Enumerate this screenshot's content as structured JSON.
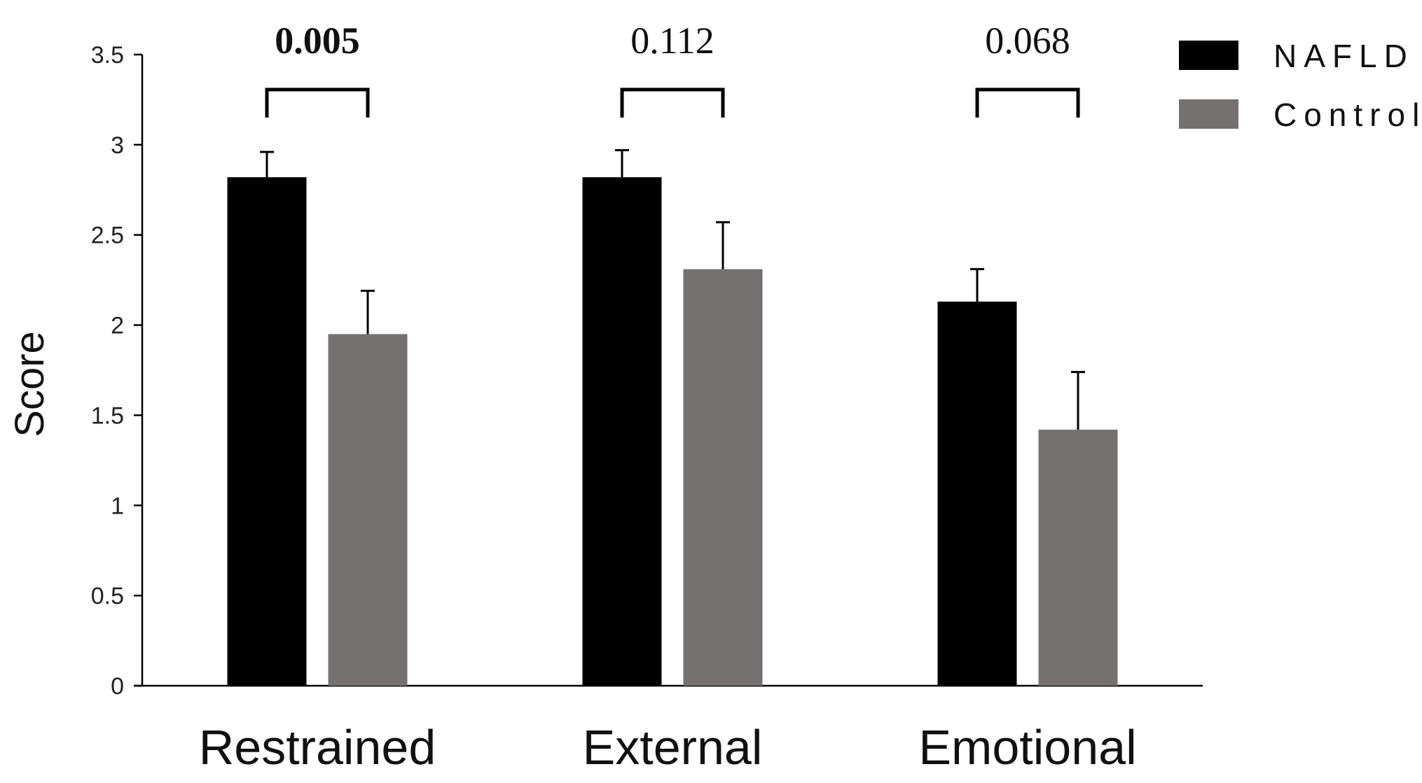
{
  "chart_data": {
    "type": "bar",
    "categories": [
      "Restrained",
      "External",
      "Emotional"
    ],
    "series": [
      {
        "name": "NAFLD",
        "values": [
          2.82,
          2.82,
          2.13
        ],
        "errors": [
          0.14,
          0.15,
          0.18
        ],
        "color": "#000000"
      },
      {
        "name": "Control",
        "values": [
          1.95,
          2.31,
          1.42
        ],
        "errors": [
          0.24,
          0.26,
          0.32
        ],
        "color": "#767171"
      }
    ],
    "ylabel": "Score",
    "xlabel": "",
    "title": "",
    "ylim": [
      0,
      3.5
    ],
    "yticks": [
      "0",
      "0.5",
      "1",
      "1.5",
      "2",
      "2.5",
      "3",
      "3.5"
    ],
    "annotations": [
      {
        "category": "Restrained",
        "text": "0.005",
        "bold": true
      },
      {
        "category": "External",
        "text": "0.112",
        "bold": false
      },
      {
        "category": "Emotional",
        "text": "0.068",
        "bold": false
      }
    ],
    "legend_position": "top-right",
    "grid": false
  }
}
